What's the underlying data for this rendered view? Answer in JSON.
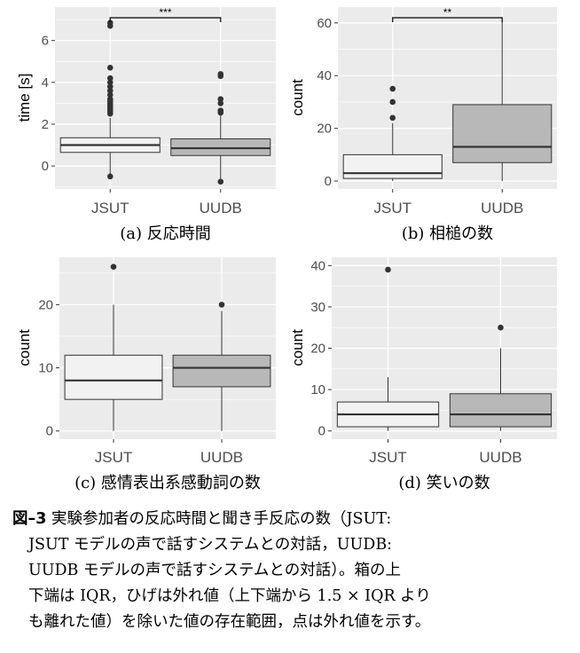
{
  "chart_data": [
    {
      "type": "box",
      "subcaption": "(a) 反応時間",
      "ylabel": "time [s]",
      "categories": [
        "JSUT",
        "UUDB"
      ],
      "ylim": [
        -1.1,
        7.6
      ],
      "yticks": [
        0,
        2,
        4,
        6
      ],
      "significance": "***",
      "boxes": [
        {
          "category": "JSUT",
          "whisker_low": -0.5,
          "q1": 0.65,
          "median": 1.0,
          "q3": 1.35,
          "whisker_high": 2.3,
          "outliers": [
            -0.5,
            2.5,
            2.6,
            2.7,
            2.8,
            2.9,
            3.0,
            3.1,
            3.2,
            3.4,
            3.6,
            3.8,
            4.0,
            4.2,
            4.7,
            6.7,
            6.85
          ]
        },
        {
          "category": "UUDB",
          "whisker_low": -0.75,
          "q1": 0.5,
          "median": 0.85,
          "q3": 1.3,
          "whisker_high": 2.5,
          "outliers": [
            -0.75,
            2.55,
            2.65,
            3.0,
            3.2,
            4.3,
            4.4
          ]
        }
      ]
    },
    {
      "type": "box",
      "subcaption": "(b) 相槌の数",
      "ylabel": "count",
      "categories": [
        "JSUT",
        "UUDB"
      ],
      "ylim": [
        -3,
        66
      ],
      "yticks": [
        0,
        20,
        40,
        60
      ],
      "significance": "**",
      "boxes": [
        {
          "category": "JSUT",
          "whisker_low": 0,
          "q1": 1,
          "median": 3,
          "q3": 10,
          "whisker_high": 22,
          "outliers": [
            24,
            30,
            35
          ]
        },
        {
          "category": "UUDB",
          "whisker_low": 0,
          "q1": 7,
          "median": 13,
          "q3": 29,
          "whisker_high": 61,
          "outliers": []
        }
      ]
    },
    {
      "type": "box",
      "subcaption": "(c) 感情表出系感動詞の数",
      "ylabel": "count",
      "categories": [
        "JSUT",
        "UUDB"
      ],
      "ylim": [
        -1.3,
        27.5
      ],
      "yticks": [
        0,
        10,
        20
      ],
      "significance": "",
      "boxes": [
        {
          "category": "JSUT",
          "whisker_low": 0,
          "q1": 5,
          "median": 8,
          "q3": 12,
          "whisker_high": 20,
          "outliers": [
            26
          ]
        },
        {
          "category": "UUDB",
          "whisker_low": 0,
          "q1": 7,
          "median": 10,
          "q3": 12,
          "whisker_high": 19,
          "outliers": [
            20
          ]
        }
      ]
    },
    {
      "type": "box",
      "subcaption": "(d) 笑いの数",
      "ylabel": "count",
      "categories": [
        "JSUT",
        "UUDB"
      ],
      "ylim": [
        -2,
        42
      ],
      "yticks": [
        0,
        10,
        20,
        30,
        40
      ],
      "significance": "",
      "boxes": [
        {
          "category": "JSUT",
          "whisker_low": 0,
          "q1": 1,
          "median": 4,
          "q3": 7,
          "whisker_high": 13,
          "outliers": [
            39
          ]
        },
        {
          "category": "UUDB",
          "whisker_low": 0,
          "q1": 1,
          "median": 4,
          "q3": 9,
          "whisker_high": 20,
          "outliers": [
            25
          ]
        }
      ]
    }
  ],
  "caption": {
    "label": "図–3",
    "line1": "実験参加者の反応時間と聞き手反応の数（JSUT:",
    "line2": "JSUT モデルの声で話すシステムとの対話，UUDB:",
    "line3": "UUDB モデルの声で話すシステムとの対話）。箱の上",
    "line4": "下端は IQR，ひげは外れ値（上下端から 1.5 × IQR より",
    "line5": "も離れた値）を除いた値の存在範囲，点は外れ値を示す。"
  },
  "colors": {
    "panel_bg": "#ebebeb",
    "grid": "#ffffff",
    "box_jsut": "#f2f2f2",
    "box_uudb": "#b8b8b8",
    "line": "#333333"
  }
}
